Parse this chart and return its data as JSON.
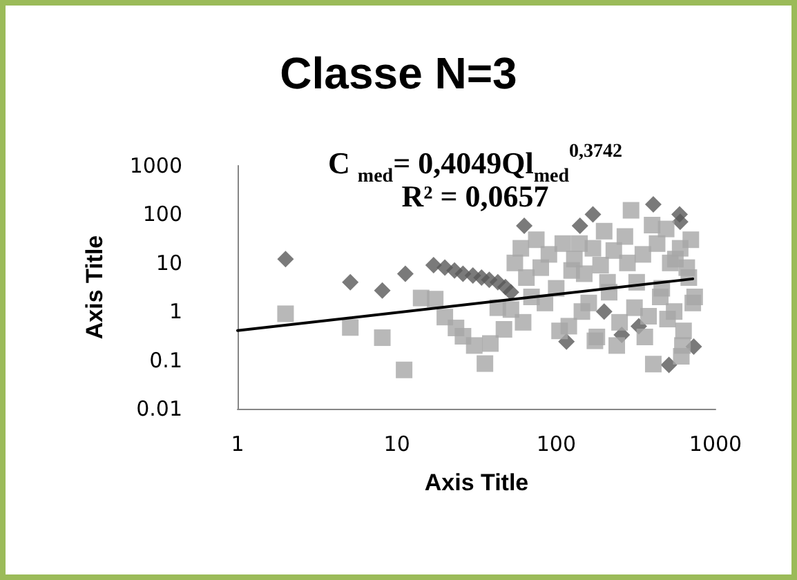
{
  "chart_data": {
    "type": "scatter",
    "title": "Classe N=3",
    "xlabel": "Axis Title",
    "ylabel": "Axis Title",
    "annotations": [
      "C $_{med}$= 0,4049Ql$_{med}$$^{0,3742}$",
      "R² = 0,0657"
    ],
    "log": "xy",
    "grid": false,
    "xlim": [
      1,
      1000
    ],
    "xticks": [
      1,
      10,
      100,
      1000
    ],
    "ylim": [
      0.01,
      1000
    ],
    "yticks": [
      0.01,
      0.1,
      1,
      10,
      100,
      1000
    ],
    "series": [
      {
        "color": "#595959",
        "marker": "diamond",
        "x": [
          2,
          5.1,
          8.1,
          11.3,
          17,
          20,
          23,
          26,
          30,
          34,
          38,
          43,
          48,
          52,
          63,
          141,
          170,
          407,
          595,
          116,
          258,
          730,
          510,
          200,
          330,
          600
        ],
        "values": [
          12,
          4,
          2.7,
          6,
          9,
          8,
          7,
          6,
          5.5,
          5,
          4.5,
          4,
          3.2,
          2.5,
          58,
          58,
          100,
          160,
          100,
          0.24,
          0.33,
          0.19,
          0.08,
          1,
          0.5,
          70
        ]
      },
      {
        "color": "#a6a6a6",
        "marker": "square",
        "x": [
          2,
          5.1,
          8.1,
          11.1,
          14.2,
          17.4,
          20,
          23.5,
          26,
          30.6,
          35.7,
          38.6,
          47,
          43,
          52,
          55,
          60,
          65,
          70,
          75,
          80,
          90,
          100,
          110,
          120,
          130,
          140,
          150,
          160,
          170,
          180,
          190,
          200,
          215,
          230,
          250,
          270,
          295,
          320,
          350,
          380,
          407,
          430,
          460,
          490,
          520,
          550,
          610,
          600,
          630,
          660,
          700,
          740,
          62,
          85,
          105,
          125,
          145,
          175,
          210,
          240,
          280,
          310,
          360,
          400,
          450,
          500,
          560,
          620,
          680,
          720
        ],
        "values": [
          0.9,
          0.47,
          0.29,
          0.063,
          1.9,
          1.8,
          0.77,
          0.46,
          0.31,
          0.2,
          0.085,
          0.22,
          0.43,
          1.2,
          1.1,
          10,
          20,
          5,
          2,
          30,
          8,
          15,
          3,
          25,
          0.5,
          12,
          25,
          6,
          1.5,
          20,
          0.3,
          9,
          45,
          2.5,
          18,
          0.6,
          35,
          121,
          4,
          15,
          0.8,
          0.083,
          25,
          3,
          50,
          10,
          1,
          0.12,
          20,
          0.4,
          8,
          30,
          2,
          0.6,
          1.5,
          0.4,
          7,
          1,
          0.25,
          4,
          0.2,
          10,
          1.2,
          0.3,
          60,
          2,
          0.7,
          12,
          0.2,
          5,
          1.5
        ]
      },
      {
        "type": "line",
        "color": "#000000",
        "marker": "none",
        "x": [
          1,
          720
        ],
        "values": [
          0.4049,
          4.7
        ]
      }
    ]
  }
}
